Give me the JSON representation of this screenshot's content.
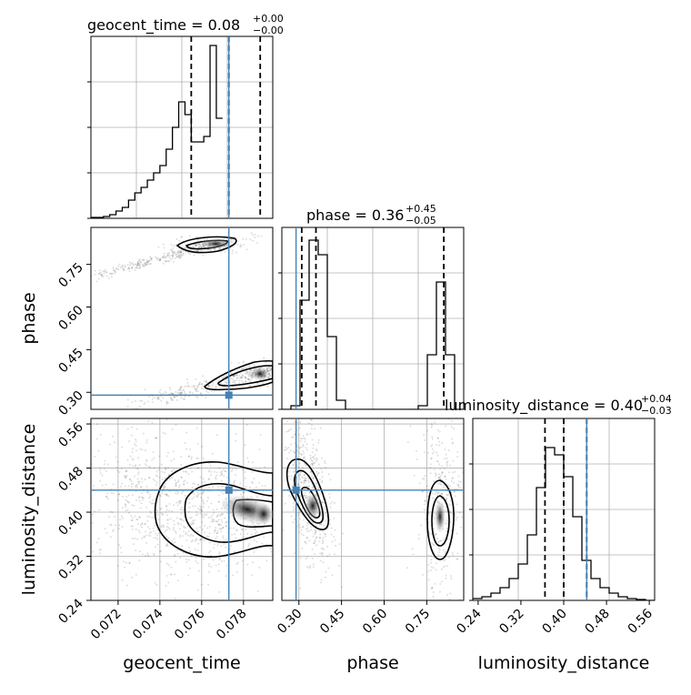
{
  "figure": {
    "type": "corner-plot"
  },
  "colors": {
    "truth": "#4682b4",
    "hist": "#000000",
    "grid": "#b0b0b0",
    "contour": "#000000"
  },
  "chart_data": [
    {
      "type": "histogram",
      "panel": "geocent_time-marginal",
      "title_label": "geocent_time = 0.08",
      "title_plus": "+0.00",
      "title_minus": "−0.00",
      "xlim": [
        0.0707,
        0.0794
      ],
      "ylim": [
        0,
        1.0
      ],
      "bins_start": 0.0707,
      "bin_width": 0.0003,
      "counts": [
        0.005,
        0.005,
        0.01,
        0.02,
        0.04,
        0.06,
        0.1,
        0.14,
        0.17,
        0.21,
        0.25,
        0.29,
        0.38,
        0.5,
        0.64,
        0.57,
        0.42,
        0.42,
        0.45,
        0.95,
        0.55
      ],
      "quantiles": [
        0.0755,
        0.0773,
        0.0788
      ],
      "truth": 0.0773
    },
    {
      "type": "scatter-contour",
      "panel": "geocent_time-phase",
      "xlim": [
        0.0707,
        0.0794
      ],
      "ylim": [
        0.24,
        0.88
      ],
      "truth": [
        0.0773,
        0.29
      ],
      "ylabel": "phase",
      "yticks": [
        "0.30",
        "0.45",
        "0.60",
        "0.75"
      ]
    },
    {
      "type": "histogram",
      "panel": "phase-marginal",
      "title_label": "phase = 0.36",
      "title_plus": "+0.45",
      "title_minus": "−0.05",
      "xlim": [
        0.24,
        0.88
      ],
      "ylim": [
        0,
        1.0
      ],
      "bins_start": 0.24,
      "bin_width": 0.032,
      "counts": [
        0.0,
        0.02,
        0.6,
        0.93,
        0.85,
        0.4,
        0.05,
        0.0,
        0.0,
        0.0,
        0.0,
        0.0,
        0.0,
        0.0,
        0.0,
        0.02,
        0.3,
        0.7,
        0.3,
        0.0
      ],
      "quantiles": [
        0.31,
        0.36,
        0.81
      ],
      "truth": 0.29
    },
    {
      "type": "scatter-contour",
      "panel": "geocent_time-luminosity_distance",
      "xlim": [
        0.0707,
        0.0794
      ],
      "ylim": [
        0.24,
        0.57
      ],
      "truth": [
        0.0773,
        0.44
      ],
      "xlabel": "geocent_time",
      "ylabel": "luminosity_distance",
      "xticks": [
        "0.072",
        "0.074",
        "0.076",
        "0.078"
      ],
      "yticks": [
        "0.24",
        "0.32",
        "0.40",
        "0.48",
        "0.56"
      ]
    },
    {
      "type": "scatter-contour",
      "panel": "phase-luminosity_distance",
      "xlim": [
        0.24,
        0.88
      ],
      "ylim": [
        0.24,
        0.57
      ],
      "truth": [
        0.29,
        0.44
      ],
      "xlabel": "phase",
      "xticks": [
        "0.30",
        "0.45",
        "0.60",
        "0.75"
      ]
    },
    {
      "type": "histogram",
      "panel": "luminosity_distance-marginal",
      "title_label": "luminosity_distance = 0.40",
      "title_plus": "+0.04",
      "title_minus": "−0.03",
      "xlim": [
        0.23,
        0.57
      ],
      "ylim": [
        0,
        1.0
      ],
      "bins_start": 0.23,
      "bin_width": 0.017,
      "counts": [
        0.01,
        0.02,
        0.04,
        0.07,
        0.12,
        0.2,
        0.36,
        0.62,
        0.84,
        0.8,
        0.68,
        0.46,
        0.22,
        0.12,
        0.07,
        0.04,
        0.02,
        0.01,
        0.005,
        0.0
      ],
      "quantiles": [
        0.365,
        0.4,
        0.443
      ],
      "truth": 0.443,
      "xlabel": "luminosity_distance",
      "xticks": [
        "0.24",
        "0.32",
        "0.40",
        "0.48",
        "0.56"
      ]
    }
  ]
}
